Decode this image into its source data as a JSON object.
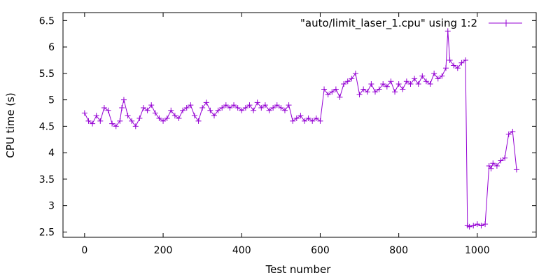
{
  "chart_data": {
    "type": "line",
    "title": "",
    "xlabel": "Test number",
    "ylabel": "CPU time (s)",
    "xlim": [
      -55,
      1150
    ],
    "ylim": [
      2.4,
      6.65
    ],
    "xticks": [
      0,
      200,
      400,
      600,
      800,
      1000
    ],
    "yticks": [
      2.5,
      3,
      3.5,
      4,
      4.5,
      5,
      5.5,
      6,
      6.5
    ],
    "xtick_labels": [
      "0",
      "200",
      "400",
      "600",
      "800",
      "1000"
    ],
    "ytick_labels": [
      "2.5",
      "3",
      "3.5",
      "4",
      "4.5",
      "5",
      "5.5",
      "6",
      "6.5"
    ],
    "grid": false,
    "legend_position": "top-right",
    "series": [
      {
        "name": "\"auto/limit_laser_1.cpu\" using 1:2",
        "color": "#9400d3",
        "marker": "plus",
        "x": [
          0,
          10,
          20,
          30,
          40,
          50,
          60,
          70,
          80,
          90,
          95,
          100,
          110,
          120,
          130,
          140,
          150,
          160,
          170,
          180,
          190,
          200,
          210,
          220,
          230,
          240,
          250,
          260,
          270,
          280,
          290,
          300,
          310,
          320,
          330,
          340,
          350,
          360,
          370,
          380,
          390,
          400,
          410,
          420,
          430,
          440,
          450,
          460,
          470,
          480,
          490,
          500,
          510,
          520,
          530,
          540,
          550,
          560,
          570,
          580,
          590,
          600,
          610,
          620,
          630,
          640,
          650,
          660,
          670,
          680,
          690,
          700,
          710,
          720,
          730,
          740,
          750,
          760,
          770,
          780,
          790,
          800,
          810,
          820,
          830,
          840,
          850,
          860,
          870,
          880,
          890,
          900,
          910,
          920,
          925,
          930,
          940,
          950,
          960,
          970,
          975,
          980,
          990,
          1000,
          1010,
          1020,
          1030,
          1035,
          1040,
          1050,
          1060,
          1070,
          1080,
          1090,
          1100
        ],
        "y": [
          4.75,
          4.6,
          4.55,
          4.7,
          4.6,
          4.85,
          4.8,
          4.55,
          4.5,
          4.6,
          4.85,
          5.0,
          4.7,
          4.6,
          4.5,
          4.65,
          4.85,
          4.8,
          4.9,
          4.75,
          4.65,
          4.6,
          4.65,
          4.8,
          4.7,
          4.65,
          4.8,
          4.85,
          4.9,
          4.7,
          4.6,
          4.85,
          4.95,
          4.8,
          4.7,
          4.8,
          4.85,
          4.9,
          4.85,
          4.9,
          4.85,
          4.8,
          4.85,
          4.9,
          4.8,
          4.95,
          4.85,
          4.9,
          4.8,
          4.85,
          4.9,
          4.85,
          4.8,
          4.9,
          4.6,
          4.65,
          4.7,
          4.6,
          4.65,
          4.6,
          4.65,
          4.6,
          5.2,
          5.1,
          5.15,
          5.2,
          5.05,
          5.3,
          5.35,
          5.4,
          5.5,
          5.1,
          5.2,
          5.15,
          5.3,
          5.15,
          5.2,
          5.3,
          5.25,
          5.35,
          5.15,
          5.3,
          5.2,
          5.35,
          5.3,
          5.4,
          5.3,
          5.45,
          5.35,
          5.3,
          5.5,
          5.4,
          5.45,
          5.6,
          6.3,
          5.75,
          5.65,
          5.6,
          5.7,
          5.75,
          2.62,
          2.6,
          2.62,
          2.65,
          2.62,
          2.65,
          3.75,
          3.7,
          3.8,
          3.75,
          3.85,
          3.9,
          4.35,
          4.4,
          3.68
        ]
      }
    ]
  }
}
